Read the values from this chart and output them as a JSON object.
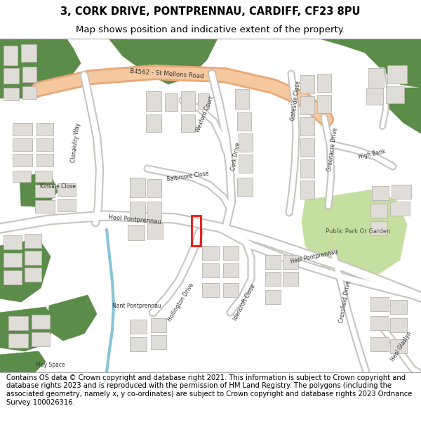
{
  "title_line1": "3, CORK DRIVE, PONTPRENNAU, CARDIFF, CF23 8PU",
  "title_line2": "Map shows position and indicative extent of the property.",
  "footer": "Contains OS data © Crown copyright and database right 2021. This information is subject to Crown copyright and database rights 2023 and is reproduced with the permission of HM Land Registry. The polygons (including the associated geometry, namely x, y co-ordinates) are subject to Crown copyright and database rights 2023 Ordnance Survey 100026316.",
  "bg_color": "#ffffff",
  "map_bg": "#f2f0ed",
  "green_dark": "#5c8c4a",
  "green_light": "#c5dfa0",
  "road_main_fill": "#f5c8a0",
  "road_main_outline": "#e8a878",
  "road_fill": "#ffffff",
  "road_outline": "#c8c4be",
  "building_fill": "#e0ddd8",
  "building_outline": "#b8b4ae",
  "water_color": "#89c4d8",
  "red_outline": "#ee1111",
  "title_fontsize": 10.5,
  "subtitle_fontsize": 9.5,
  "footer_fontsize": 7.2,
  "label_color": "#333333"
}
